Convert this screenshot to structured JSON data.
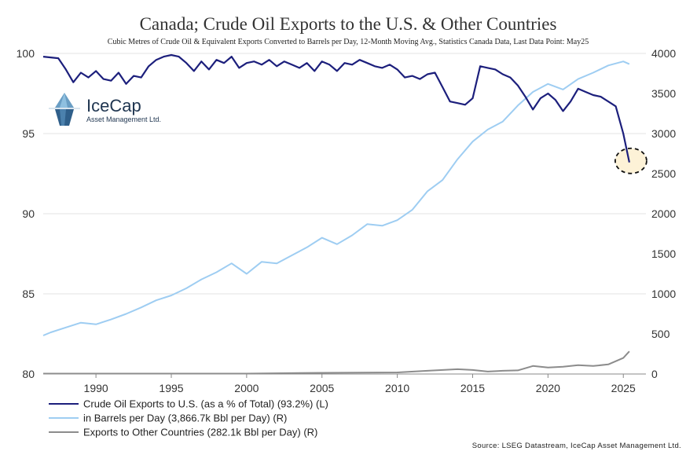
{
  "chart_data": {
    "type": "line",
    "title": "Canada; Crude Oil Exports to the U.S. & Other Countries",
    "subtitle": "Cubic Metres of Crude Oil & Equivalent Exports Converted to Barrels per Day, 12-Month Moving Avg., Statistics Canada Data, Last Data Point: May25",
    "x_ticks": [
      "1990",
      "1995",
      "2000",
      "2005",
      "2010",
      "2015",
      "2020",
      "2025"
    ],
    "x_range": [
      1986.5,
      2026.5
    ],
    "left_axis": {
      "range": [
        80,
        100
      ],
      "ticks": [
        "80",
        "85",
        "90",
        "95",
        "100"
      ]
    },
    "right_axis": {
      "range": [
        0,
        4000
      ],
      "ticks": [
        "0",
        "500",
        "1000",
        "1500",
        "2000",
        "2500",
        "3000",
        "3500",
        "4000"
      ]
    },
    "series": [
      {
        "name": "Crude Oil Exports to U.S. (as a % of Total) (93.2%) (L)",
        "axis": "left",
        "color": "#1c1f7c",
        "x": [
          1986.5,
          1987.5,
          1988,
          1988.5,
          1989,
          1989.5,
          1990,
          1990.5,
          1991,
          1991.5,
          1992,
          1992.5,
          1993,
          1993.5,
          1994,
          1994.5,
          1995,
          1995.5,
          1996,
          1996.5,
          1997,
          1997.5,
          1998,
          1998.5,
          1999,
          1999.5,
          2000,
          2000.5,
          2001,
          2001.5,
          2002,
          2002.5,
          2003,
          2003.5,
          2004,
          2004.5,
          2005,
          2005.5,
          2006,
          2006.5,
          2007,
          2007.5,
          2008,
          2008.5,
          2009,
          2009.5,
          2010,
          2010.5,
          2011,
          2011.5,
          2012,
          2012.5,
          2013,
          2013.5,
          2014,
          2014.5,
          2015,
          2015.5,
          2016,
          2016.5,
          2017,
          2017.5,
          2018,
          2018.5,
          2019,
          2019.5,
          2020,
          2020.5,
          2021,
          2021.5,
          2022,
          2022.5,
          2023,
          2023.5,
          2024,
          2024.5,
          2025,
          2025.4
        ],
        "values": [
          99.8,
          99.7,
          99.0,
          98.2,
          98.8,
          98.5,
          98.9,
          98.4,
          98.3,
          98.8,
          98.1,
          98.6,
          98.5,
          99.2,
          99.6,
          99.8,
          99.9,
          99.8,
          99.4,
          98.9,
          99.5,
          99.0,
          99.6,
          99.4,
          99.8,
          99.1,
          99.4,
          99.5,
          99.3,
          99.6,
          99.2,
          99.5,
          99.3,
          99.1,
          99.4,
          98.9,
          99.5,
          99.3,
          98.9,
          99.4,
          99.3,
          99.6,
          99.4,
          99.2,
          99.1,
          99.3,
          99.0,
          98.5,
          98.6,
          98.4,
          98.7,
          98.8,
          97.9,
          97.0,
          96.9,
          96.8,
          97.2,
          99.2,
          99.1,
          99.0,
          98.7,
          98.5,
          98.0,
          97.3,
          96.5,
          97.2,
          97.5,
          97.1,
          96.4,
          97.0,
          97.8,
          97.6,
          97.4,
          97.3,
          97.0,
          96.7,
          95.0,
          93.2
        ]
      },
      {
        "name": "in Barrels per Day (3,866.7k Bbl per Day) (R)",
        "axis": "right",
        "color": "#9ecdf2",
        "x": [
          1986.5,
          1987,
          1988,
          1989,
          1990,
          1991,
          1992,
          1993,
          1994,
          1995,
          1996,
          1997,
          1998,
          1999,
          2000,
          2001,
          2002,
          2003,
          2004,
          2005,
          2006,
          2007,
          2008,
          2009,
          2010,
          2011,
          2012,
          2013,
          2014,
          2015,
          2016,
          2017,
          2018,
          2019,
          2020,
          2021,
          2022,
          2023,
          2024,
          2025,
          2025.4
        ],
        "values": [
          480,
          520,
          580,
          640,
          620,
          680,
          750,
          830,
          920,
          980,
          1070,
          1180,
          1270,
          1380,
          1250,
          1400,
          1380,
          1480,
          1580,
          1700,
          1620,
          1730,
          1870,
          1850,
          1920,
          2050,
          2280,
          2420,
          2680,
          2900,
          3050,
          3150,
          3350,
          3520,
          3620,
          3550,
          3680,
          3760,
          3850,
          3900,
          3867
        ]
      },
      {
        "name": "Exports to Other Countries (282.1k Bbl per Day) (R)",
        "axis": "right",
        "color": "#8c8c8c",
        "x": [
          1986.5,
          1990,
          1995,
          2000,
          2005,
          2010,
          2012,
          2014,
          2015,
          2016,
          2017,
          2018,
          2019,
          2020,
          2021,
          2022,
          2023,
          2024,
          2025,
          2025.4
        ],
        "values": [
          5,
          5,
          5,
          5,
          15,
          20,
          40,
          60,
          50,
          30,
          40,
          45,
          100,
          80,
          90,
          110,
          100,
          120,
          200,
          282
        ]
      }
    ],
    "annotation": "circle highlighting last data point 93.2%"
  },
  "legend": [
    {
      "label": "Crude Oil Exports to U.S. (as a % of Total) (93.2%) (L)",
      "color": "#1c1f7c"
    },
    {
      "label": "in Barrels per Day (3,866.7k Bbl per Day) (R)",
      "color": "#9ecdf2"
    },
    {
      "label": "Exports to Other Countries (282.1k Bbl per Day) (R)",
      "color": "#8c8c8c"
    }
  ],
  "logo": {
    "name": "IceCap",
    "tagline": "Asset Management Ltd."
  },
  "source": "Source: LSEG Datastream, IceCap Asset Management Ltd.",
  "colors": {
    "highlight_fill": "#fdf0d0",
    "grid": "#e3e3e3"
  }
}
